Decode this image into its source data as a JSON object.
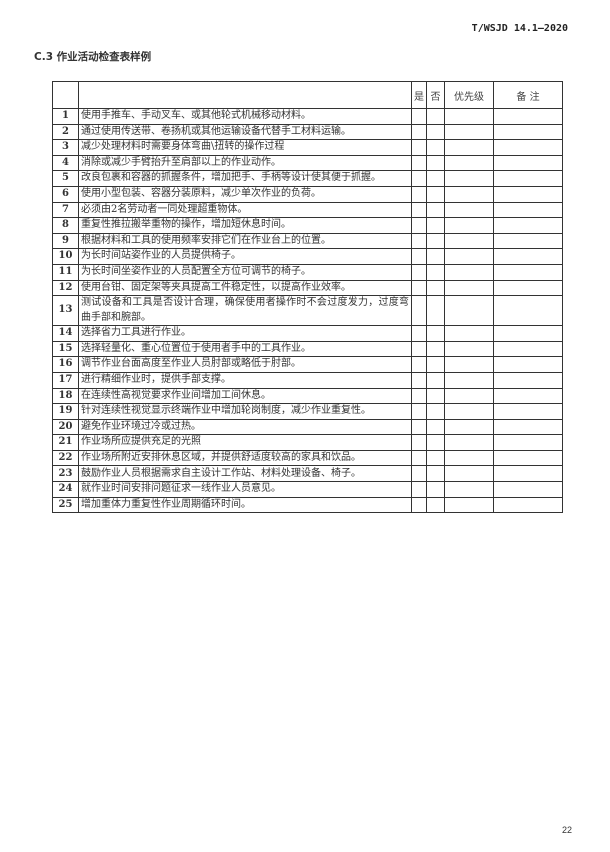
{
  "header": {
    "standard_code": "T/WSJD 14.1—2020"
  },
  "section_title": "C.3  作业活动检查表样例",
  "table": {
    "columns": [
      "",
      "",
      "是",
      "否",
      "优先级",
      "备 注"
    ],
    "rows": [
      {
        "no": "1",
        "item": "使用手推车、手动叉车、或其他轮式机械移动材料。"
      },
      {
        "no": "2",
        "item": "通过使用传送带、卷扬机或其他运输设备代替手工材料运输。"
      },
      {
        "no": "3",
        "item": "减少处理材料时需要身体弯曲\\扭转的操作过程"
      },
      {
        "no": "4",
        "item": "消除或减少手臂抬升至肩部以上的作业动作。"
      },
      {
        "no": "5",
        "item": "改良包裹和容器的抓握条件，增加把手、手柄等设计使其便于抓握。"
      },
      {
        "no": "6",
        "item": "使用小型包装、容器分装原料，减少单次作业的负荷。"
      },
      {
        "no": "7",
        "item": "必须由2名劳动者一同处理超重物体。"
      },
      {
        "no": "8",
        "item": "重复性推拉搬举重物的操作，增加短休息时间。"
      },
      {
        "no": "9",
        "item": "根据材料和工具的使用频率安排它们在作业台上的位置。"
      },
      {
        "no": "10",
        "item": "为长时间站姿作业的人员提供椅子。"
      },
      {
        "no": "11",
        "item": "为长时间坐姿作业的人员配置全方位可调节的椅子。"
      },
      {
        "no": "12",
        "item": "使用台钳、固定架等夹具提高工件稳定性，以提高作业效率。"
      },
      {
        "no": "13",
        "item": "测试设备和工具是否设计合理，确保使用者操作时不会过度发力，过度弯曲手部和腕部。"
      },
      {
        "no": "14",
        "item": "选择省力工具进行作业。"
      },
      {
        "no": "15",
        "item": "选择轻量化、重心位置位于使用者手中的工具作业。"
      },
      {
        "no": "16",
        "item": "调节作业台面高度至作业人员肘部或略低于肘部。"
      },
      {
        "no": "17",
        "item": "进行精细作业时，提供手部支撑。"
      },
      {
        "no": "18",
        "item": "在连续性高视觉要求作业间增加工间休息。"
      },
      {
        "no": "19",
        "item": "针对连续性视觉显示终端作业中增加轮岗制度，减少作业重复性。"
      },
      {
        "no": "20",
        "item": "避免作业环境过冷或过热。"
      },
      {
        "no": "21",
        "item": "作业场所应提供充足的光照"
      },
      {
        "no": "22",
        "item": "作业场所附近安排休息区域，并提供舒适度较高的家具和饮品。"
      },
      {
        "no": "23",
        "item": "鼓励作业人员根据需求自主设计工作站、材料处理设备、椅子。"
      },
      {
        "no": "24",
        "item": "就作业时间安排问题征求一线作业人员意见。"
      },
      {
        "no": "25",
        "item": "增加重体力重复性作业周期循环时间。"
      }
    ]
  },
  "page_number": "22"
}
